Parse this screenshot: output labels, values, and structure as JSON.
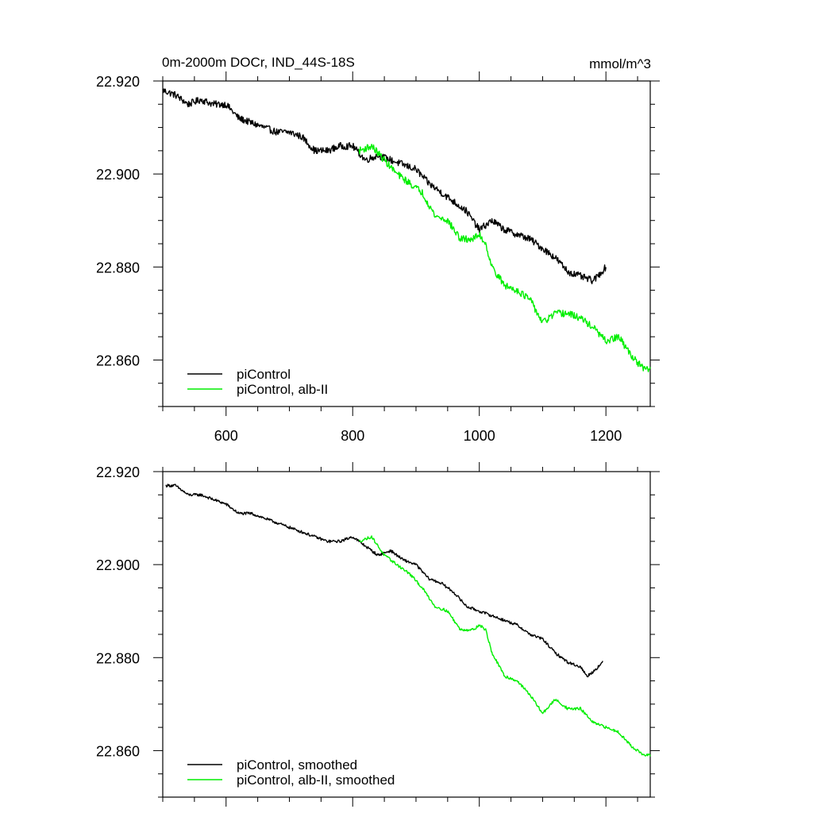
{
  "chart_data": [
    {
      "type": "line",
      "title": "0m-2000m DOCr, IND_44S-18S",
      "units": "mmol/m^3",
      "xlim": [
        500,
        1270
      ],
      "ylim": [
        22.85,
        22.92
      ],
      "xticks": [
        600,
        800,
        1000,
        1200
      ],
      "xtick_labels": [
        "600",
        "800",
        "1000",
        "1200"
      ],
      "yticks": [
        22.86,
        22.88,
        22.9,
        22.92
      ],
      "ytick_labels": [
        "22.860",
        "22.880",
        "22.900",
        "22.920"
      ],
      "legend_position": "bottom-left",
      "series": [
        {
          "name": "piControl",
          "color": "#000000",
          "noise": 0.00075,
          "points": [
            [
              500,
              22.918
            ],
            [
              520,
              22.917
            ],
            [
              540,
              22.915
            ],
            [
              560,
              22.916
            ],
            [
              580,
              22.915
            ],
            [
              600,
              22.915
            ],
            [
              620,
              22.912
            ],
            [
              640,
              22.911
            ],
            [
              660,
              22.91
            ],
            [
              680,
              22.909
            ],
            [
              700,
              22.909
            ],
            [
              720,
              22.908
            ],
            [
              740,
              22.905
            ],
            [
              760,
              22.905
            ],
            [
              780,
              22.906
            ],
            [
              800,
              22.906
            ],
            [
              820,
              22.903
            ],
            [
              840,
              22.904
            ],
            [
              860,
              22.903
            ],
            [
              880,
              22.902
            ],
            [
              900,
              22.901
            ],
            [
              920,
              22.898
            ],
            [
              940,
              22.896
            ],
            [
              960,
              22.894
            ],
            [
              980,
              22.892
            ],
            [
              1000,
              22.888
            ],
            [
              1020,
              22.89
            ],
            [
              1040,
              22.888
            ],
            [
              1060,
              22.887
            ],
            [
              1080,
              22.886
            ],
            [
              1100,
              22.884
            ],
            [
              1120,
              22.882
            ],
            [
              1140,
              22.879
            ],
            [
              1160,
              22.878
            ],
            [
              1180,
              22.877
            ],
            [
              1200,
              22.88
            ]
          ]
        },
        {
          "name": "piControl, alb-II",
          "color": "#00ee00",
          "noise": 0.00075,
          "points": [
            [
              810,
              22.905
            ],
            [
              830,
              22.906
            ],
            [
              850,
              22.903
            ],
            [
              870,
              22.9
            ],
            [
              890,
              22.898
            ],
            [
              910,
              22.896
            ],
            [
              930,
              22.891
            ],
            [
              950,
              22.89
            ],
            [
              970,
              22.886
            ],
            [
              990,
              22.886
            ],
            [
              1000,
              22.887
            ],
            [
              1010,
              22.885
            ],
            [
              1020,
              22.88
            ],
            [
              1040,
              22.876
            ],
            [
              1060,
              22.875
            ],
            [
              1080,
              22.873
            ],
            [
              1100,
              22.868
            ],
            [
              1120,
              22.87
            ],
            [
              1140,
              22.87
            ],
            [
              1160,
              22.869
            ],
            [
              1180,
              22.867
            ],
            [
              1200,
              22.864
            ],
            [
              1220,
              22.865
            ],
            [
              1240,
              22.861
            ],
            [
              1260,
              22.858
            ],
            [
              1270,
              22.858
            ]
          ]
        }
      ],
      "legend": [
        "piControl",
        "piControl, alb-II"
      ]
    },
    {
      "type": "line",
      "title": "",
      "xlim": [
        500,
        1270
      ],
      "ylim": [
        22.85,
        22.92
      ],
      "xticks": [
        600,
        800,
        1000,
        1200
      ],
      "yticks": [
        22.86,
        22.88,
        22.9,
        22.92
      ],
      "ytick_labels": [
        "22.860",
        "22.880",
        "22.900",
        "22.920"
      ],
      "legend_position": "bottom-left",
      "series": [
        {
          "name": "piControl, smoothed",
          "color": "#000000",
          "noise": 0.0003,
          "points": [
            [
              505,
              22.917
            ],
            [
              520,
              22.917
            ],
            [
              540,
              22.915
            ],
            [
              560,
              22.915
            ],
            [
              580,
              22.914
            ],
            [
              600,
              22.913
            ],
            [
              620,
              22.911
            ],
            [
              640,
              22.911
            ],
            [
              660,
              22.91
            ],
            [
              680,
              22.909
            ],
            [
              700,
              22.908
            ],
            [
              720,
              22.907
            ],
            [
              740,
              22.906
            ],
            [
              760,
              22.905
            ],
            [
              780,
              22.905
            ],
            [
              800,
              22.906
            ],
            [
              820,
              22.904
            ],
            [
              840,
              22.902
            ],
            [
              860,
              22.903
            ],
            [
              880,
              22.901
            ],
            [
              900,
              22.9
            ],
            [
              920,
              22.897
            ],
            [
              940,
              22.896
            ],
            [
              960,
              22.894
            ],
            [
              980,
              22.891
            ],
            [
              1000,
              22.89
            ],
            [
              1020,
              22.889
            ],
            [
              1040,
              22.888
            ],
            [
              1060,
              22.887
            ],
            [
              1080,
              22.885
            ],
            [
              1100,
              22.884
            ],
            [
              1120,
              22.881
            ],
            [
              1140,
              22.879
            ],
            [
              1160,
              22.878
            ],
            [
              1170,
              22.876
            ],
            [
              1180,
              22.877
            ],
            [
              1195,
              22.879
            ]
          ]
        },
        {
          "name": "piControl, alb-II, smoothed",
          "color": "#00ee00",
          "noise": 0.0003,
          "points": [
            [
              810,
              22.905
            ],
            [
              830,
              22.906
            ],
            [
              850,
              22.902
            ],
            [
              870,
              22.9
            ],
            [
              890,
              22.898
            ],
            [
              910,
              22.895
            ],
            [
              930,
              22.891
            ],
            [
              950,
              22.89
            ],
            [
              970,
              22.886
            ],
            [
              990,
              22.886
            ],
            [
              1000,
              22.887
            ],
            [
              1010,
              22.886
            ],
            [
              1020,
              22.881
            ],
            [
              1040,
              22.876
            ],
            [
              1060,
              22.875
            ],
            [
              1080,
              22.872
            ],
            [
              1100,
              22.868
            ],
            [
              1120,
              22.871
            ],
            [
              1140,
              22.869
            ],
            [
              1160,
              22.869
            ],
            [
              1180,
              22.866
            ],
            [
              1200,
              22.865
            ],
            [
              1220,
              22.864
            ],
            [
              1240,
              22.861
            ],
            [
              1260,
              22.859
            ],
            [
              1270,
              22.859
            ]
          ]
        }
      ],
      "legend": [
        "piControl, smoothed",
        "piControl, alb-II, smoothed"
      ]
    }
  ]
}
